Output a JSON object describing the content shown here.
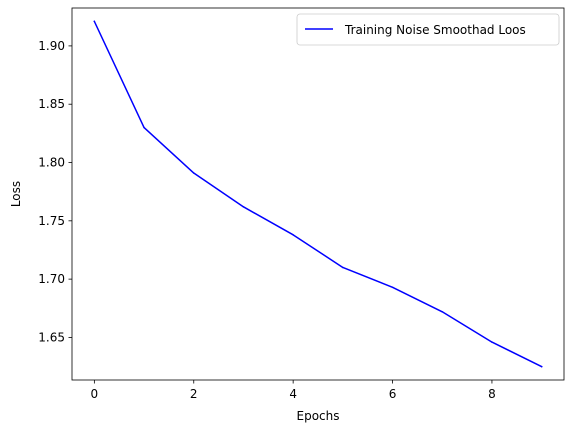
{
  "chart_data": {
    "type": "line",
    "x": [
      0,
      1,
      2,
      3,
      4,
      5,
      6,
      7,
      8,
      9
    ],
    "series": [
      {
        "name": "Training Noise Smoothad Loos",
        "color": "#0000ff",
        "values": [
          1.921,
          1.83,
          1.791,
          1.762,
          1.738,
          1.71,
          1.693,
          1.672,
          1.646,
          1.625
        ]
      }
    ],
    "xlabel": "Epochs",
    "ylabel": "Loss",
    "xlim": [
      -0.45,
      9.45
    ],
    "ylim": [
      1.6135,
      1.9325
    ],
    "xticks": [
      0,
      2,
      4,
      6,
      8
    ],
    "yticks": [
      1.65,
      1.7,
      1.75,
      1.8,
      1.85,
      1.9
    ],
    "grid": false,
    "legend_position": "upper right"
  }
}
